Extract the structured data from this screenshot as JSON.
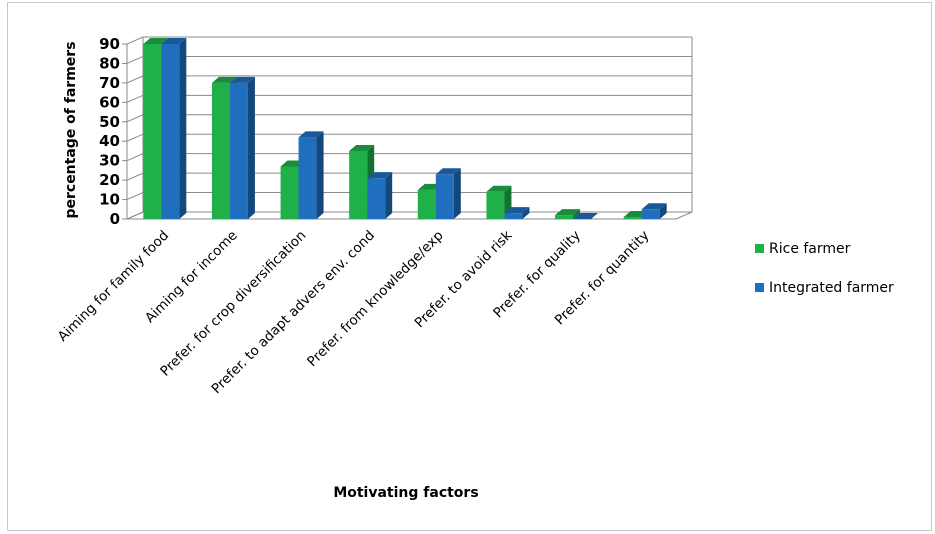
{
  "chart_data": {
    "type": "bar",
    "title": "",
    "xlabel": "Motivating factors",
    "ylabel": "percentage of farmers",
    "ylim": [
      0,
      90
    ],
    "yticks": [
      "0",
      "10",
      "20",
      "30",
      "40",
      "50",
      "60",
      "70",
      "80",
      "90"
    ],
    "grid": true,
    "legend_position": "right",
    "categories": [
      "Aiming for family food",
      "Aiming for income",
      "Prefer. for crop diversification",
      "Prefer. to adapt advers env. cond",
      "Prefer. from knowledge/exp",
      "Prefer. to avoid risk",
      "Prefer. for quality",
      "Prefer. for quantity"
    ],
    "series": [
      {
        "name": "Rice farmer",
        "values": [
          90,
          70,
          27,
          35,
          15,
          14,
          2,
          1
        ],
        "color": "#1fb04a"
      },
      {
        "name": "Integrated farmer",
        "values": [
          90,
          70,
          42,
          21,
          23,
          3,
          0,
          5
        ],
        "color": "#1f6fbe"
      }
    ]
  }
}
